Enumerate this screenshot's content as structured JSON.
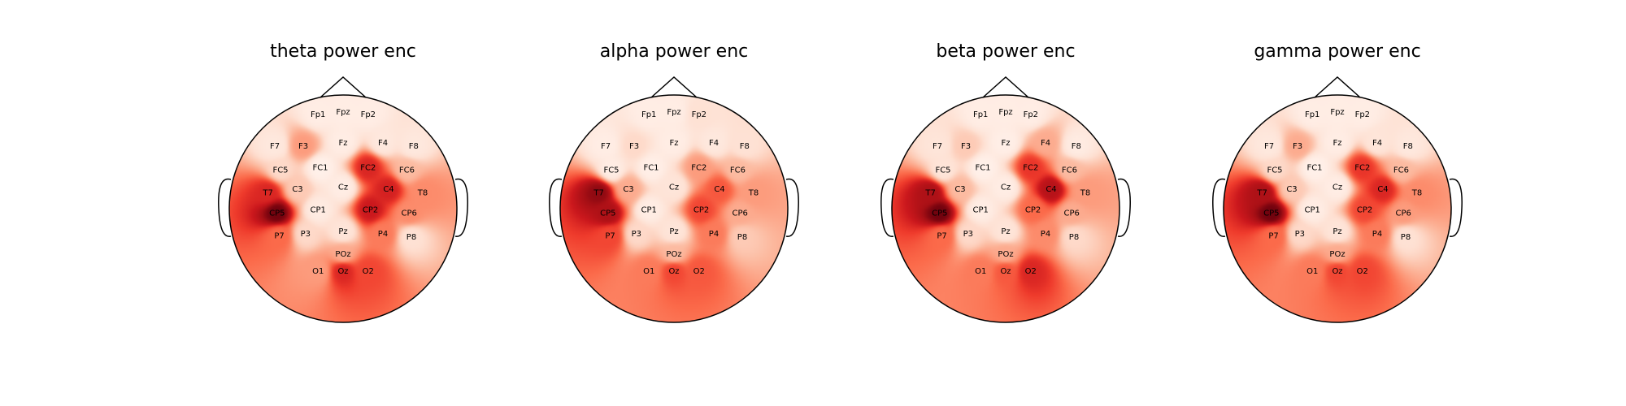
{
  "figure": {
    "colormap": "Reds",
    "background": "#ffffff",
    "color_scale_low": "#fff5f0",
    "color_scale_high": "#67000d"
  },
  "chart_data": [
    {
      "type": "heatmap",
      "title": "theta power enc",
      "electrodes": [
        "Fp1",
        "Fpz",
        "Fp2",
        "F7",
        "F3",
        "Fz",
        "F4",
        "F8",
        "FC5",
        "FC1",
        "FC2",
        "FC6",
        "T7",
        "C3",
        "Cz",
        "C4",
        "T8",
        "CP5",
        "CP1",
        "CP2",
        "CP6",
        "P7",
        "P3",
        "Pz",
        "P4",
        "P8",
        "POz",
        "O1",
        "Oz",
        "O2"
      ],
      "values": [
        0.05,
        0.05,
        0.05,
        0.08,
        0.35,
        0.05,
        0.08,
        0.08,
        0.15,
        0.03,
        0.7,
        0.25,
        0.7,
        0.2,
        0.05,
        0.72,
        0.4,
        0.98,
        0.06,
        0.75,
        0.4,
        0.5,
        0.15,
        0.1,
        0.45,
        0.12,
        0.3,
        0.35,
        0.7,
        0.6
      ]
    },
    {
      "type": "heatmap",
      "title": "alpha power enc",
      "electrodes": [
        "Fp1",
        "Fpz",
        "Fp2",
        "F7",
        "F3",
        "Fz",
        "F4",
        "F8",
        "FC5",
        "FC1",
        "FC2",
        "FC6",
        "T7",
        "C3",
        "Cz",
        "C4",
        "T8",
        "CP5",
        "CP1",
        "CP2",
        "CP6",
        "P7",
        "P3",
        "Pz",
        "P4",
        "P8",
        "POz",
        "O1",
        "Oz",
        "O2"
      ],
      "values": [
        0.05,
        0.05,
        0.12,
        0.05,
        0.15,
        0.05,
        0.08,
        0.12,
        0.05,
        0.04,
        0.35,
        0.25,
        0.92,
        0.3,
        0.1,
        0.55,
        0.35,
        0.85,
        0.05,
        0.6,
        0.3,
        0.6,
        0.15,
        0.1,
        0.45,
        0.2,
        0.25,
        0.45,
        0.6,
        0.55
      ]
    },
    {
      "type": "heatmap",
      "title": "beta power enc",
      "electrodes": [
        "Fp1",
        "Fpz",
        "Fp2",
        "F7",
        "F3",
        "Fz",
        "F4",
        "F8",
        "FC5",
        "FC1",
        "FC2",
        "FC6",
        "T7",
        "C3",
        "Cz",
        "C4",
        "T8",
        "CP5",
        "CP1",
        "CP2",
        "CP6",
        "P7",
        "P3",
        "Pz",
        "P4",
        "P8",
        "POz",
        "O1",
        "Oz",
        "O2"
      ],
      "values": [
        0.05,
        0.05,
        0.05,
        0.1,
        0.2,
        0.04,
        0.3,
        0.06,
        0.1,
        0.03,
        0.65,
        0.25,
        0.85,
        0.25,
        0.05,
        0.82,
        0.35,
        0.98,
        0.05,
        0.5,
        0.3,
        0.5,
        0.15,
        0.1,
        0.4,
        0.15,
        0.3,
        0.45,
        0.55,
        0.7
      ]
    },
    {
      "type": "heatmap",
      "title": "gamma power enc",
      "electrodes": [
        "Fp1",
        "Fpz",
        "Fp2",
        "F7",
        "F3",
        "Fz",
        "F4",
        "F8",
        "FC5",
        "FC1",
        "FC2",
        "FC6",
        "T7",
        "C3",
        "Cz",
        "C4",
        "T8",
        "CP5",
        "CP1",
        "CP2",
        "CP6",
        "P7",
        "P3",
        "Pz",
        "P4",
        "P8",
        "POz",
        "O1",
        "Oz",
        "O2"
      ],
      "values": [
        0.05,
        0.05,
        0.05,
        0.08,
        0.3,
        0.05,
        0.1,
        0.08,
        0.15,
        0.03,
        0.65,
        0.25,
        0.85,
        0.2,
        0.05,
        0.7,
        0.4,
        0.98,
        0.05,
        0.6,
        0.35,
        0.5,
        0.15,
        0.1,
        0.45,
        0.12,
        0.3,
        0.45,
        0.6,
        0.6
      ]
    }
  ]
}
